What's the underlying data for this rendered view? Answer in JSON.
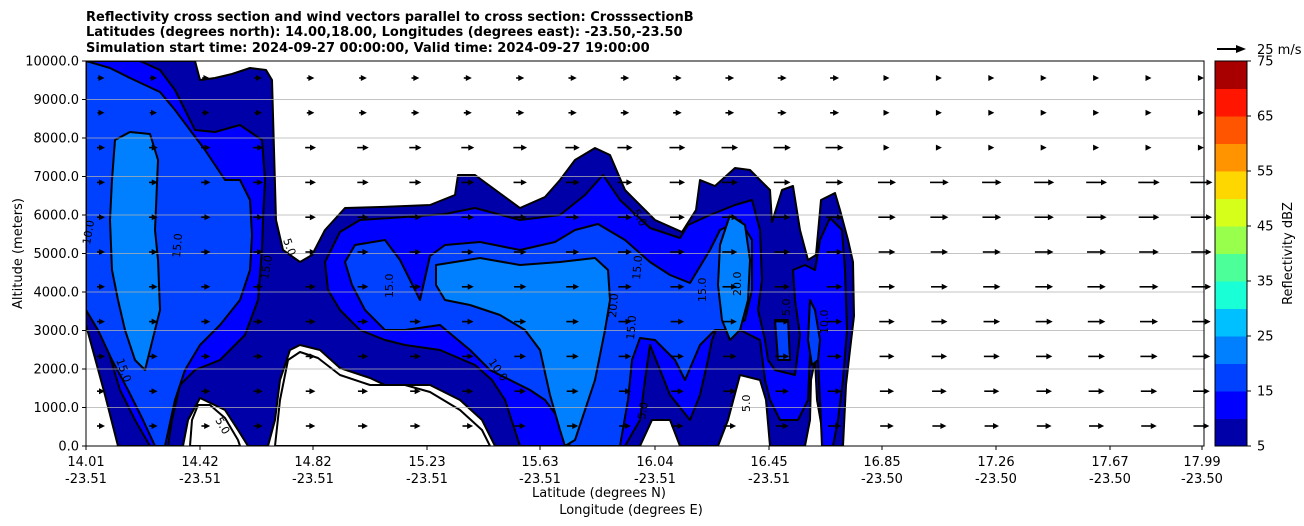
{
  "chart_data": {
    "type": "contour",
    "title_lines": [
      "Reflectivity cross section and wind vectors parallel to cross section: CrosssectionB",
      "Latitudes (degrees north): 14.00,18.00, Longitudes (degrees east): -23.50,-23.50",
      "Simulation start time: 2024-09-27 00:00:00, Valid time: 2024-09-27 19:00:00"
    ],
    "xlabel_lat": "Latitude (degrees N)",
    "xlabel_lon": "Longitude (degrees E)",
    "ylabel": "Altitude (meters)",
    "ylim": [
      0,
      10000
    ],
    "y_ticks": [
      "0.0",
      "1000.0",
      "2000.0",
      "3000.0",
      "4000.0",
      "5000.0",
      "6000.0",
      "7000.0",
      "8000.0",
      "9000.0",
      "10000.0"
    ],
    "x_ticks_lat": [
      "14.01",
      "14.42",
      "14.82",
      "15.23",
      "15.63",
      "16.04",
      "16.45",
      "16.85",
      "17.26",
      "17.67",
      "17.99"
    ],
    "x_ticks_lon": [
      "-23.51",
      "-23.51",
      "-23.51",
      "-23.51",
      "-23.51",
      "-23.51",
      "-23.51",
      "-23.50",
      "-23.50",
      "-23.50",
      "-23.50"
    ],
    "grid": "horizontal",
    "colorbar": {
      "label": "Reflectivity dBZ",
      "levels": [
        5,
        10,
        15,
        20,
        25,
        30,
        35,
        40,
        45,
        50,
        55,
        60,
        65,
        70,
        75
      ],
      "tick_labels": [
        "5",
        "15",
        "25",
        "35",
        "45",
        "55",
        "65",
        "75"
      ],
      "colors": [
        "#0000a8",
        "#0000ff",
        "#0040ff",
        "#0080ff",
        "#00c0ff",
        "#19ffd6",
        "#4dff99",
        "#99ff4d",
        "#d6ff19",
        "#ffd700",
        "#ff9400",
        "#ff5500",
        "#ff1500",
        "#a80000"
      ]
    },
    "quiver_key": "25 m/s",
    "contour_labels": [
      "5.0",
      "10.0",
      "15.0",
      "20.0"
    ]
  }
}
